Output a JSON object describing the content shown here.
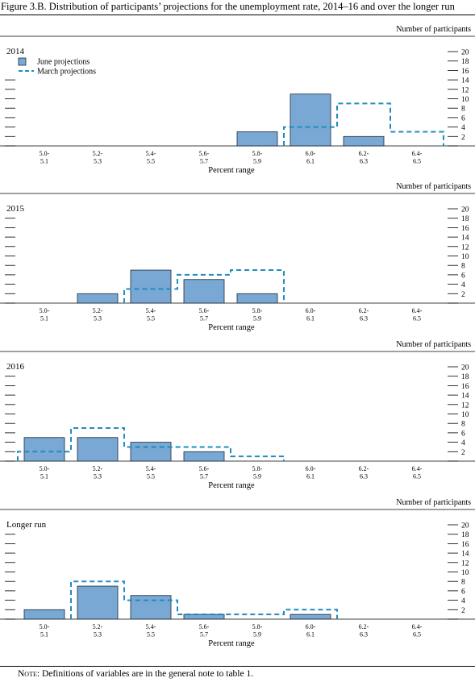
{
  "figure_title": "Figure 3.B. Distribution of participants’ projections for the unemployment rate, 2014–16 and over the longer run",
  "note_label": "Note:",
  "note_text": " Definitions of variables are in the general note to table 1.",
  "colors": {
    "june_fill": "#78a8d3",
    "june_stroke": "#1b2a3a",
    "march_line": "#1f8dbd",
    "text": "#000000"
  },
  "legend": {
    "june": "June projections",
    "march": "March projections"
  },
  "chart_data": [
    {
      "type": "bar",
      "title": "2014",
      "xlabel": "Percent range",
      "ylabel": "Number of participants",
      "categories": [
        "5.0-\n5.1",
        "5.2-\n5.3",
        "5.4-\n5.5",
        "5.6-\n5.7",
        "5.8-\n5.9",
        "6.0-\n6.1",
        "6.2-\n6.3",
        "6.4-\n6.5"
      ],
      "yticks": [
        2,
        4,
        6,
        8,
        10,
        12,
        14,
        16,
        18,
        20
      ],
      "ylim": [
        0,
        20
      ],
      "series": [
        {
          "name": "June projections",
          "style": "bar",
          "values": [
            0,
            0,
            0,
            0,
            3,
            11,
            2,
            0
          ]
        },
        {
          "name": "March projections",
          "style": "dashed-outline",
          "values": [
            0,
            0,
            0,
            0,
            0,
            4,
            9,
            3
          ]
        }
      ]
    },
    {
      "type": "bar",
      "title": "2015",
      "xlabel": "Percent range",
      "ylabel": "Number of participants",
      "categories": [
        "5.0-\n5.1",
        "5.2-\n5.3",
        "5.4-\n5.5",
        "5.6-\n5.7",
        "5.8-\n5.9",
        "6.0-\n6.1",
        "6.2-\n6.3",
        "6.4-\n6.5"
      ],
      "yticks": [
        2,
        4,
        6,
        8,
        10,
        12,
        14,
        16,
        18,
        20
      ],
      "ylim": [
        0,
        20
      ],
      "series": [
        {
          "name": "June projections",
          "style": "bar",
          "values": [
            0,
            2,
            7,
            5,
            2,
            0,
            0,
            0
          ]
        },
        {
          "name": "March projections",
          "style": "dashed-outline",
          "values": [
            0,
            0,
            3,
            6,
            7,
            0,
            0,
            0
          ]
        }
      ]
    },
    {
      "type": "bar",
      "title": "2016",
      "xlabel": "Percent range",
      "ylabel": "Number of participants",
      "categories": [
        "5.0-\n5.1",
        "5.2-\n5.3",
        "5.4-\n5.5",
        "5.6-\n5.7",
        "5.8-\n5.9",
        "6.0-\n6.1",
        "6.2-\n6.3",
        "6.4-\n6.5"
      ],
      "yticks": [
        2,
        4,
        6,
        8,
        10,
        12,
        14,
        16,
        18,
        20
      ],
      "ylim": [
        0,
        20
      ],
      "series": [
        {
          "name": "June projections",
          "style": "bar",
          "values": [
            5,
            5,
            4,
            2,
            0,
            0,
            0,
            0
          ]
        },
        {
          "name": "March projections",
          "style": "dashed-outline",
          "values": [
            2,
            7,
            3,
            3,
            1,
            0,
            0,
            0
          ]
        }
      ]
    },
    {
      "type": "bar",
      "title": "Longer run",
      "xlabel": "Percent range",
      "ylabel": "Number of participants",
      "categories": [
        "5.0-\n5.1",
        "5.2-\n5.3",
        "5.4-\n5.5",
        "5.6-\n5.7",
        "5.8-\n5.9",
        "6.0-\n6.1",
        "6.2-\n6.3",
        "6.4-\n6.5"
      ],
      "yticks": [
        2,
        4,
        6,
        8,
        10,
        12,
        14,
        16,
        18,
        20
      ],
      "ylim": [
        0,
        20
      ],
      "series": [
        {
          "name": "June projections",
          "style": "bar",
          "values": [
            2,
            7,
            5,
            1,
            0,
            1,
            0,
            0
          ]
        },
        {
          "name": "March projections",
          "style": "dashed-outline",
          "values": [
            0,
            8,
            4,
            1,
            1,
            2,
            0,
            0
          ]
        }
      ]
    }
  ]
}
